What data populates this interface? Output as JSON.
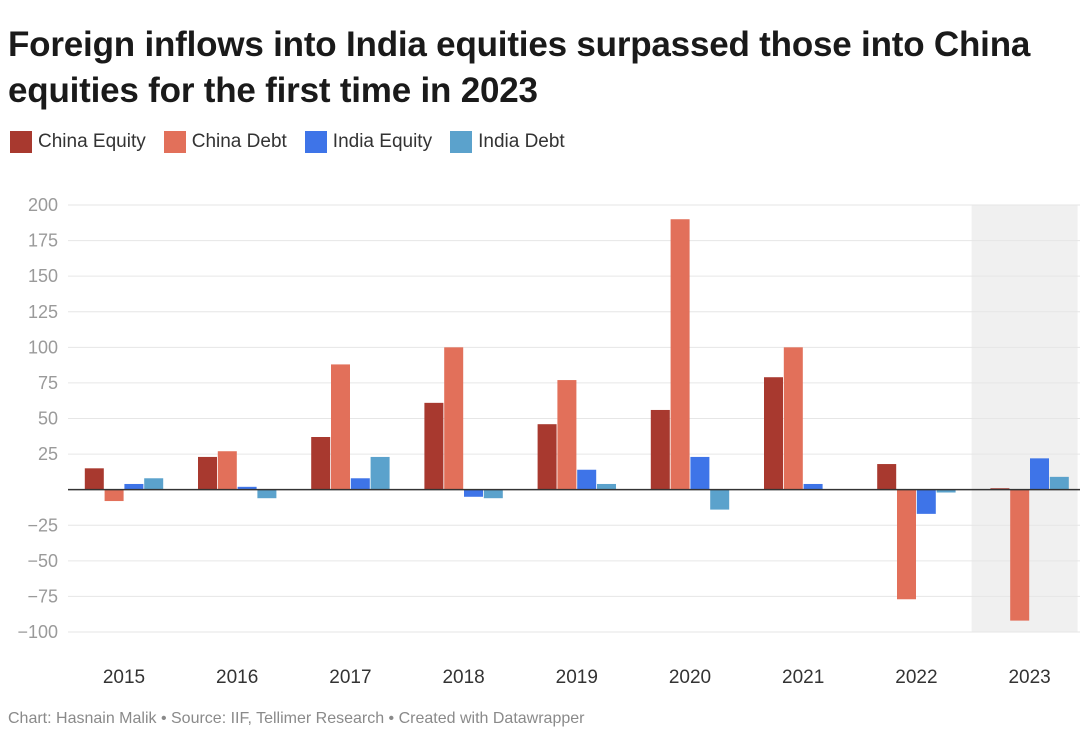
{
  "title": "Foreign inflows into India equities surpassed those into China equities for the first time in 2023",
  "footer": "Chart: Hasnain Malik • Source: IIF, Tellimer Research • Created with Datawrapper",
  "colors": {
    "china_equity": "#a8392f",
    "china_debt": "#e2705a",
    "india_equity": "#3e74e8",
    "india_debt": "#5ba2cc",
    "highlight_band": "#f0f0f0",
    "grid": "#e6e6e6",
    "axis_text": "#9a9a9a",
    "year_text": "#333333",
    "zero_line": "#333333"
  },
  "chart_data": {
    "type": "bar",
    "categories": [
      "2015",
      "2016",
      "2017",
      "2018",
      "2019",
      "2020",
      "2021",
      "2022",
      "2023"
    ],
    "series": [
      {
        "name": "China Equity",
        "color_key": "china_equity",
        "values": [
          15,
          23,
          37,
          61,
          46,
          56,
          79,
          18,
          1
        ]
      },
      {
        "name": "China Debt",
        "color_key": "china_debt",
        "values": [
          -8,
          27,
          88,
          100,
          77,
          190,
          100,
          -77,
          -92
        ]
      },
      {
        "name": "India Equity",
        "color_key": "india_equity",
        "values": [
          4,
          2,
          8,
          -5,
          14,
          23,
          4,
          -17,
          22
        ]
      },
      {
        "name": "India Debt",
        "color_key": "india_debt",
        "values": [
          8,
          -6,
          23,
          -6,
          4,
          -14,
          0,
          -2,
          9
        ]
      }
    ],
    "ylim": [
      -100,
      200
    ],
    "yticks": [
      "200",
      "175",
      "150",
      "125",
      "100",
      "75",
      "50",
      "25",
      "−25",
      "−50",
      "−75",
      "−100"
    ],
    "ytick_values": [
      200,
      175,
      150,
      125,
      100,
      75,
      50,
      25,
      -25,
      -50,
      -75,
      -100
    ],
    "highlighted_category": "2023",
    "grid": true,
    "legend_position": "top-left",
    "xlabel": "",
    "ylabel": ""
  }
}
